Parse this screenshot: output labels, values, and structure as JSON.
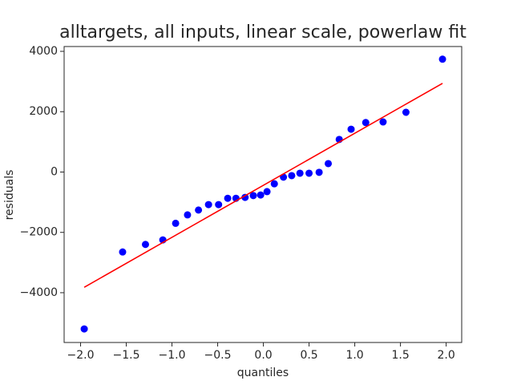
{
  "chart_data": {
    "type": "scatter",
    "title": "alltargets, all inputs, linear scale, powerlaw fit",
    "xlabel": "quantiles",
    "ylabel": "residuals",
    "xlim": [
      -2.18,
      2.17
    ],
    "ylim": [
      -5650,
      4160
    ],
    "xticks": [
      {
        "value": -2,
        "label": "−2.0"
      },
      {
        "value": -1.5,
        "label": "−1.5"
      },
      {
        "value": -1,
        "label": "−1.0"
      },
      {
        "value": -0.5,
        "label": "−0.5"
      },
      {
        "value": 0,
        "label": "0.0"
      },
      {
        "value": 0.5,
        "label": "0.5"
      },
      {
        "value": 1,
        "label": "1.0"
      },
      {
        "value": 1.5,
        "label": "1.5"
      },
      {
        "value": 2,
        "label": "2.0"
      }
    ],
    "yticks": [
      {
        "value": -4000,
        "label": "−4000"
      },
      {
        "value": -2000,
        "label": "−2000"
      },
      0,
      2000,
      4000
    ],
    "series": [
      {
        "color": "#0000ff",
        "x": [
          -1.96,
          -1.54,
          -1.29,
          -1.1,
          -0.96,
          -0.83,
          -0.71,
          -0.6,
          -0.49,
          -0.39,
          -0.3,
          -0.2,
          -0.11,
          -0.03,
          0.04,
          0.12,
          0.22,
          0.31,
          0.4,
          0.5,
          0.61,
          0.71,
          0.83,
          0.96,
          1.12,
          1.31,
          1.56,
          1.96
        ],
        "values": [
          -5200,
          -2650,
          -2400,
          -2250,
          -1700,
          -1420,
          -1260,
          -1080,
          -1080,
          -870,
          -870,
          -840,
          -780,
          -760,
          -650,
          -390,
          -170,
          -120,
          -40,
          -40,
          -10,
          280,
          1080,
          1420,
          1640,
          1660,
          1980,
          3740
        ]
      },
      {
        "color": "#ff0000",
        "kind": "line",
        "x": [
          -1.96,
          1.96
        ],
        "values": [
          -3820,
          2940
        ]
      }
    ]
  }
}
